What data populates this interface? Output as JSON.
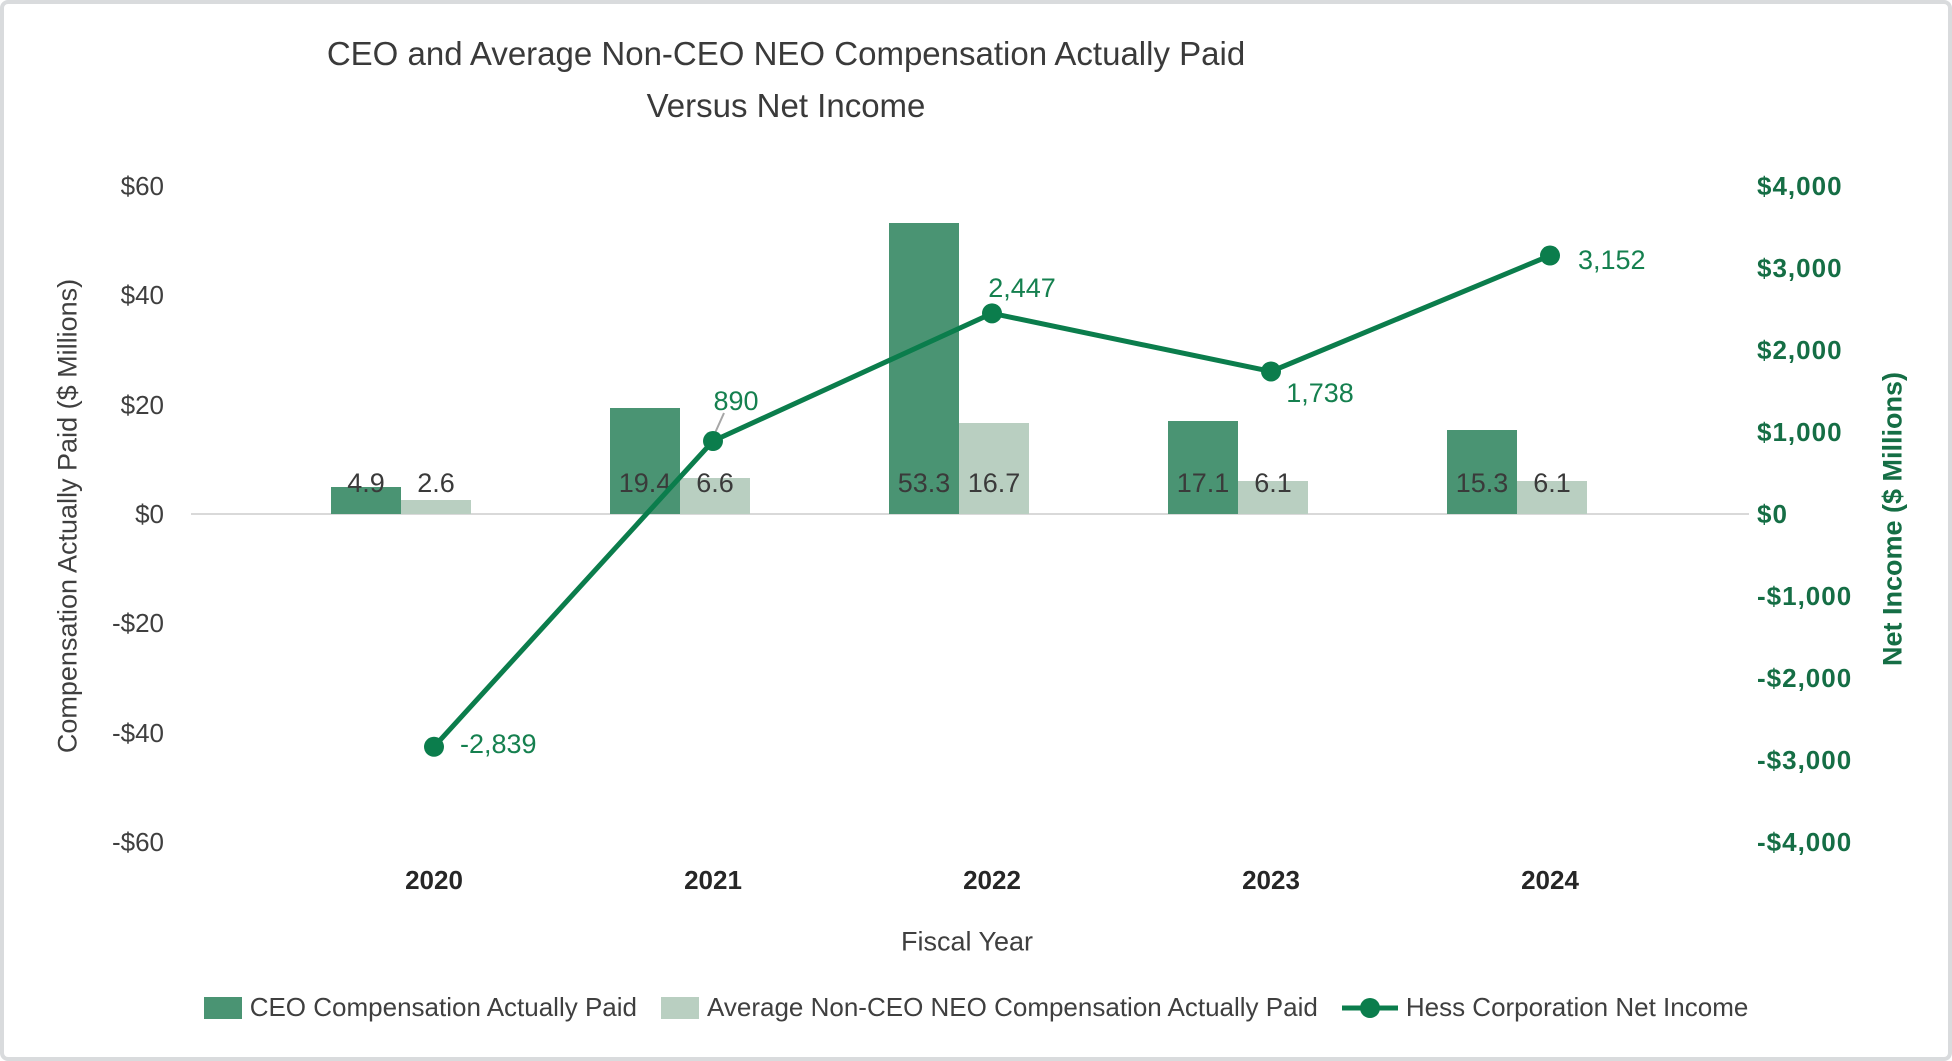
{
  "title": {
    "line1": "CEO and Average Non-CEO NEO Compensation Actually Paid",
    "line2": "Versus Net Income"
  },
  "chart_data": {
    "type": "combo",
    "categories": [
      "2020",
      "2021",
      "2022",
      "2023",
      "2024"
    ],
    "series": [
      {
        "name": "CEO Compensation Actually Paid",
        "type": "bar",
        "axis": "left",
        "color": "#4A9473",
        "values": [
          4.9,
          19.4,
          53.3,
          17.1,
          15.3
        ],
        "labels": [
          "4.9",
          "19.4",
          "53.3",
          "17.1",
          "15.3"
        ]
      },
      {
        "name": "Average Non-CEO NEO Compensation Actually Paid",
        "type": "bar",
        "axis": "left",
        "color": "#B9CFC1",
        "values": [
          2.6,
          6.6,
          16.7,
          6.1,
          6.1
        ],
        "labels": [
          "2.6",
          "6.6",
          "16.7",
          "6.1",
          "6.1"
        ]
      },
      {
        "name": "Hess Corporation Net Income",
        "type": "line",
        "axis": "right",
        "marker": "circle",
        "color": "#0B7D4C",
        "values": [
          -2839,
          890,
          2447,
          1738,
          3152
        ],
        "labels": [
          "-2,839",
          "890",
          "2,447",
          "1,738",
          "3,152"
        ],
        "label_placement": [
          {
            "dx": 26,
            "dy": -3,
            "anchor": "start"
          },
          {
            "dx": 23,
            "dy": -40,
            "anchor": "middle",
            "leader": true
          },
          {
            "dx": 30,
            "dy": -25,
            "anchor": "middle"
          },
          {
            "dx": 49,
            "dy": 22,
            "anchor": "middle"
          },
          {
            "dx": 28,
            "dy": 4,
            "anchor": "start"
          }
        ]
      }
    ],
    "left_axis": {
      "title": "Compensation Actually Paid ($ Millions)",
      "min": -60,
      "max": 60,
      "ticks": [
        {
          "label": "$60",
          "value": 60
        },
        {
          "label": "$40",
          "value": 40
        },
        {
          "label": "$20",
          "value": 20
        },
        {
          "label": "$0",
          "value": 0
        },
        {
          "label": "-$20",
          "value": -20
        },
        {
          "label": "-$40",
          "value": -40
        },
        {
          "label": "-$60",
          "value": -60
        }
      ]
    },
    "right_axis": {
      "title": "Net Income ($ Millions)",
      "min": -4000,
      "max": 4000,
      "ticks": [
        {
          "label": "$4,000",
          "value": 4000
        },
        {
          "label": "$3,000",
          "value": 3000
        },
        {
          "label": "$2,000",
          "value": 2000
        },
        {
          "label": "$1,000",
          "value": 1000
        },
        {
          "label": "$0",
          "value": 0
        },
        {
          "label": "-$1,000",
          "value": -1000
        },
        {
          "label": "-$2,000",
          "value": -2000
        },
        {
          "label": "-$3,000",
          "value": -3000
        },
        {
          "label": "-$4,000",
          "value": -4000
        }
      ]
    },
    "x_axis": {
      "title": "Fiscal Year"
    },
    "gridlines": "zero-line-only",
    "legend_position": "bottom"
  },
  "colors": {
    "bar_dark": "#4A9473",
    "bar_light": "#B9CFC1",
    "line_green": "#0B7D4C",
    "label_green": "#15804F",
    "axis_green": "#156E45",
    "text_dark": "#3F3F3F",
    "gridline": "#D9D9D9",
    "leader": "#A6A6A6",
    "border": "#D9DBDD"
  }
}
